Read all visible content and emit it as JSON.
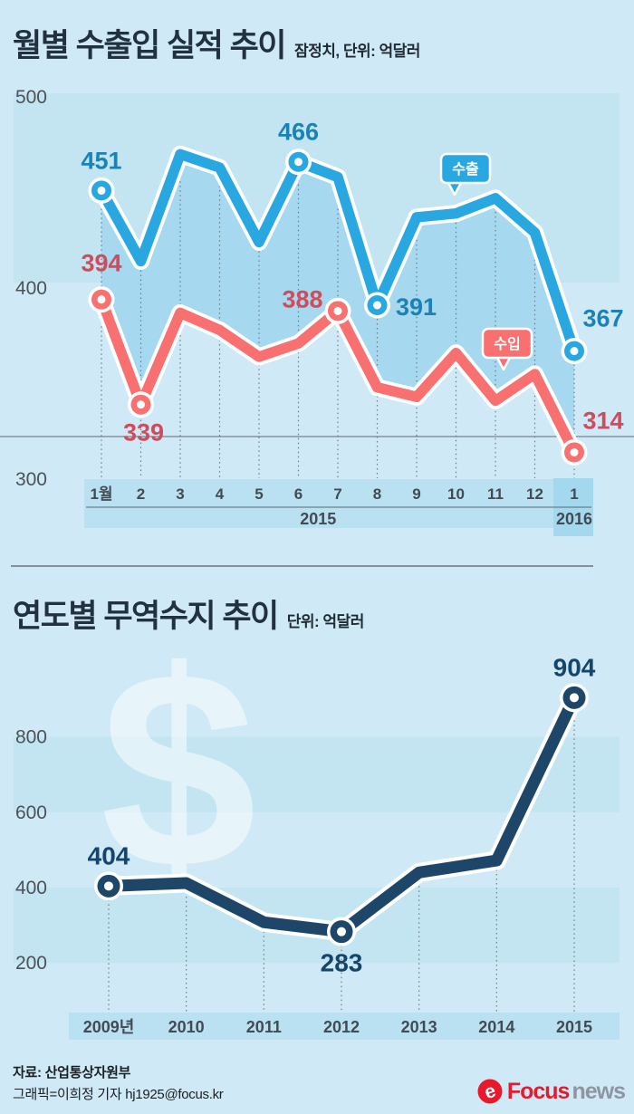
{
  "palette": {
    "page_bg": "#cfeaf6",
    "band": "#c3e5f2",
    "axis_band": "#b9e1f2",
    "axis_band_highlight": "#a3d8ee",
    "fill_between": "#a6d8ef",
    "export_blue": "#29a7e0",
    "export_label_blue": "#1b82b4",
    "import_red": "#f97070",
    "import_label_red": "#d04b5b",
    "balance_navy": "#1d4668",
    "balance_label_navy": "#15446c",
    "logo_red": "#e8192c",
    "logo_gray": "#8d969e"
  },
  "section1": {
    "title": "월별 수출입 실적 추이",
    "subtitle": "잠정치, 단위: 억달러"
  },
  "section2": {
    "title": "연도별 무역수지 추이",
    "subtitle": "단위: 억달러"
  },
  "footer": {
    "source": "자료: 산업통상자원부",
    "credit": "그래픽=이희정 기자 hj1925@focus.kr",
    "logo": {
      "icon": "focus-news-swirl-icon",
      "word1": "Focus",
      "word2": "news"
    }
  },
  "chart_data": [
    {
      "type": "line",
      "title": "월별 수출입 실적 추이",
      "subtitle": "잠정치, 단위: 억달러",
      "unit": "억달러",
      "x": [
        "1월",
        "2",
        "3",
        "4",
        "5",
        "6",
        "7",
        "8",
        "9",
        "10",
        "11",
        "12",
        "1"
      ],
      "x_groups": [
        {
          "label": "2015",
          "from": 0,
          "to": 11,
          "highlight": false
        },
        {
          "label": "2016",
          "from": 12,
          "to": 12,
          "highlight": true
        }
      ],
      "yticks": [
        500,
        400,
        300
      ],
      "ylim": [
        290,
        510
      ],
      "grid": "dotted-vertical",
      "legend_style": "callout-badges",
      "series": [
        {
          "name": "수출",
          "color": "#29a7e0",
          "label_color": "#1b82b4",
          "values": [
            451,
            414,
            470,
            463,
            424,
            466,
            458,
            391,
            437,
            439,
            447,
            429,
            367
          ],
          "labeled_points": {
            "0": 451,
            "5": 466,
            "7": 391,
            "12": 367
          }
        },
        {
          "name": "수입",
          "color": "#f97070",
          "label_color": "#d04b5b",
          "values": [
            394,
            339,
            387,
            378,
            364,
            371,
            388,
            348,
            343,
            366,
            341,
            355,
            314
          ],
          "labeled_points": {
            "0": 394,
            "1": 339,
            "6": 388,
            "12": 314
          }
        }
      ]
    },
    {
      "type": "line",
      "title": "연도별 무역수지 추이",
      "unit": "억달러",
      "x": [
        "2009년",
        "2010",
        "2011",
        "2012",
        "2013",
        "2014",
        "2015"
      ],
      "yticks": [
        800,
        600,
        400,
        200
      ],
      "ylim": [
        150,
        950
      ],
      "grid": "dotted-vertical",
      "watermark": "$",
      "series": [
        {
          "name": "무역수지",
          "color": "#1d4668",
          "label_color": "#15446c",
          "values": [
            404,
            412,
            308,
            283,
            440,
            472,
            904
          ],
          "labeled_points": {
            "0": 404,
            "3": 283,
            "6": 904
          }
        }
      ]
    }
  ]
}
